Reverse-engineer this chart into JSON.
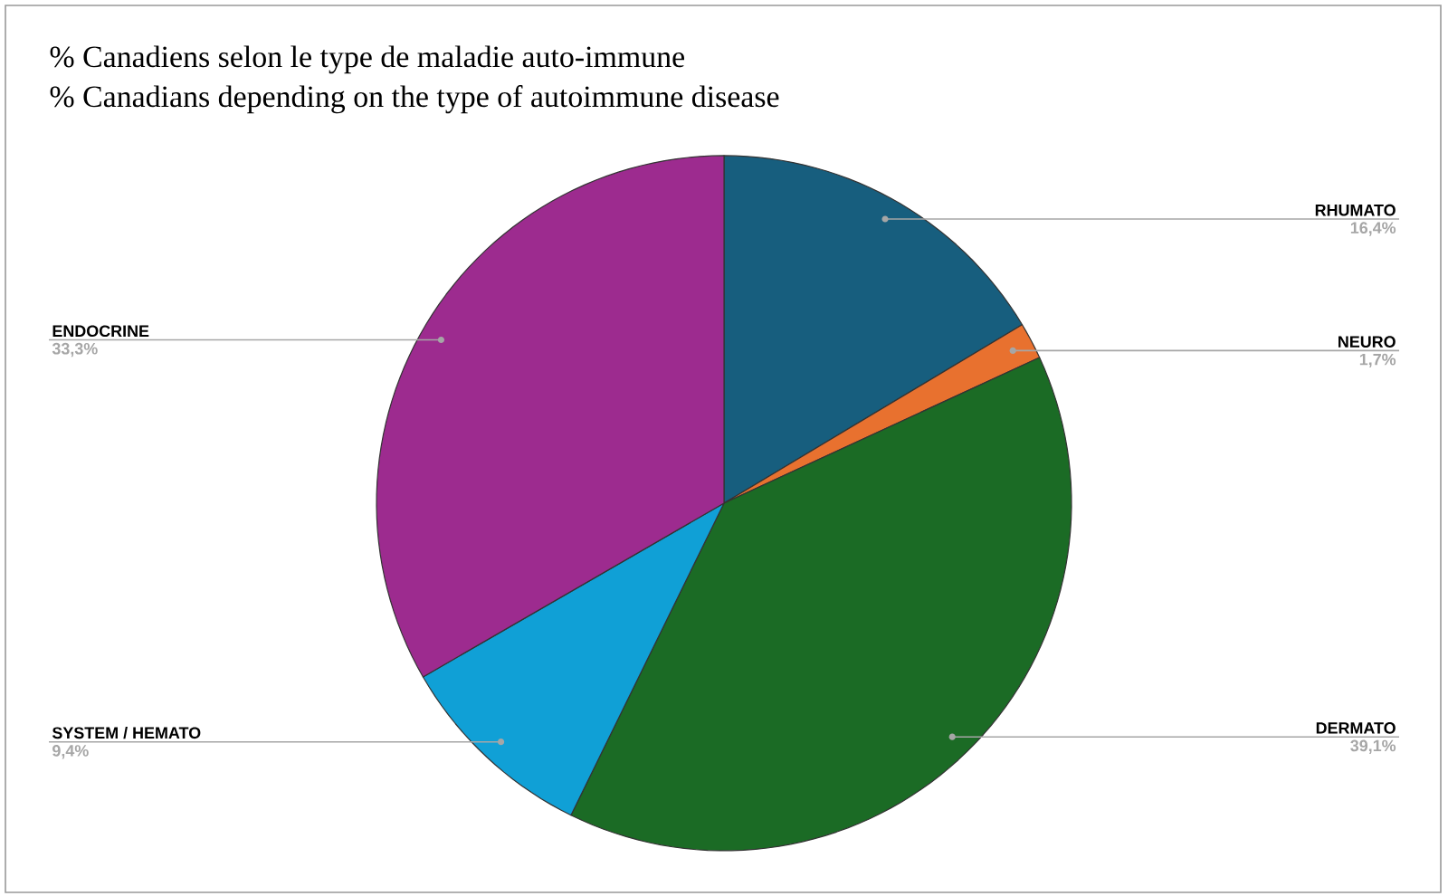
{
  "chart_data": {
    "type": "pie",
    "title": "% Canadiens selon le type de maladie auto-immune",
    "subtitle": "% Canadians depending on the type of autoimmune disease",
    "categories": [
      "RHUMATO",
      "NEURO",
      "DERMATO",
      "SYSTEM / HEMATO",
      "ENDOCRINE"
    ],
    "values": [
      16.4,
      1.7,
      39.1,
      9.4,
      33.3
    ],
    "colors": [
      "#175e7e",
      "#e8712f",
      "#1b6b25",
      "#10a0d6",
      "#9d2b8f"
    ],
    "value_labels": [
      "16,4%",
      "1,7%",
      "39,1%",
      "9,4%",
      "33,3%"
    ]
  }
}
